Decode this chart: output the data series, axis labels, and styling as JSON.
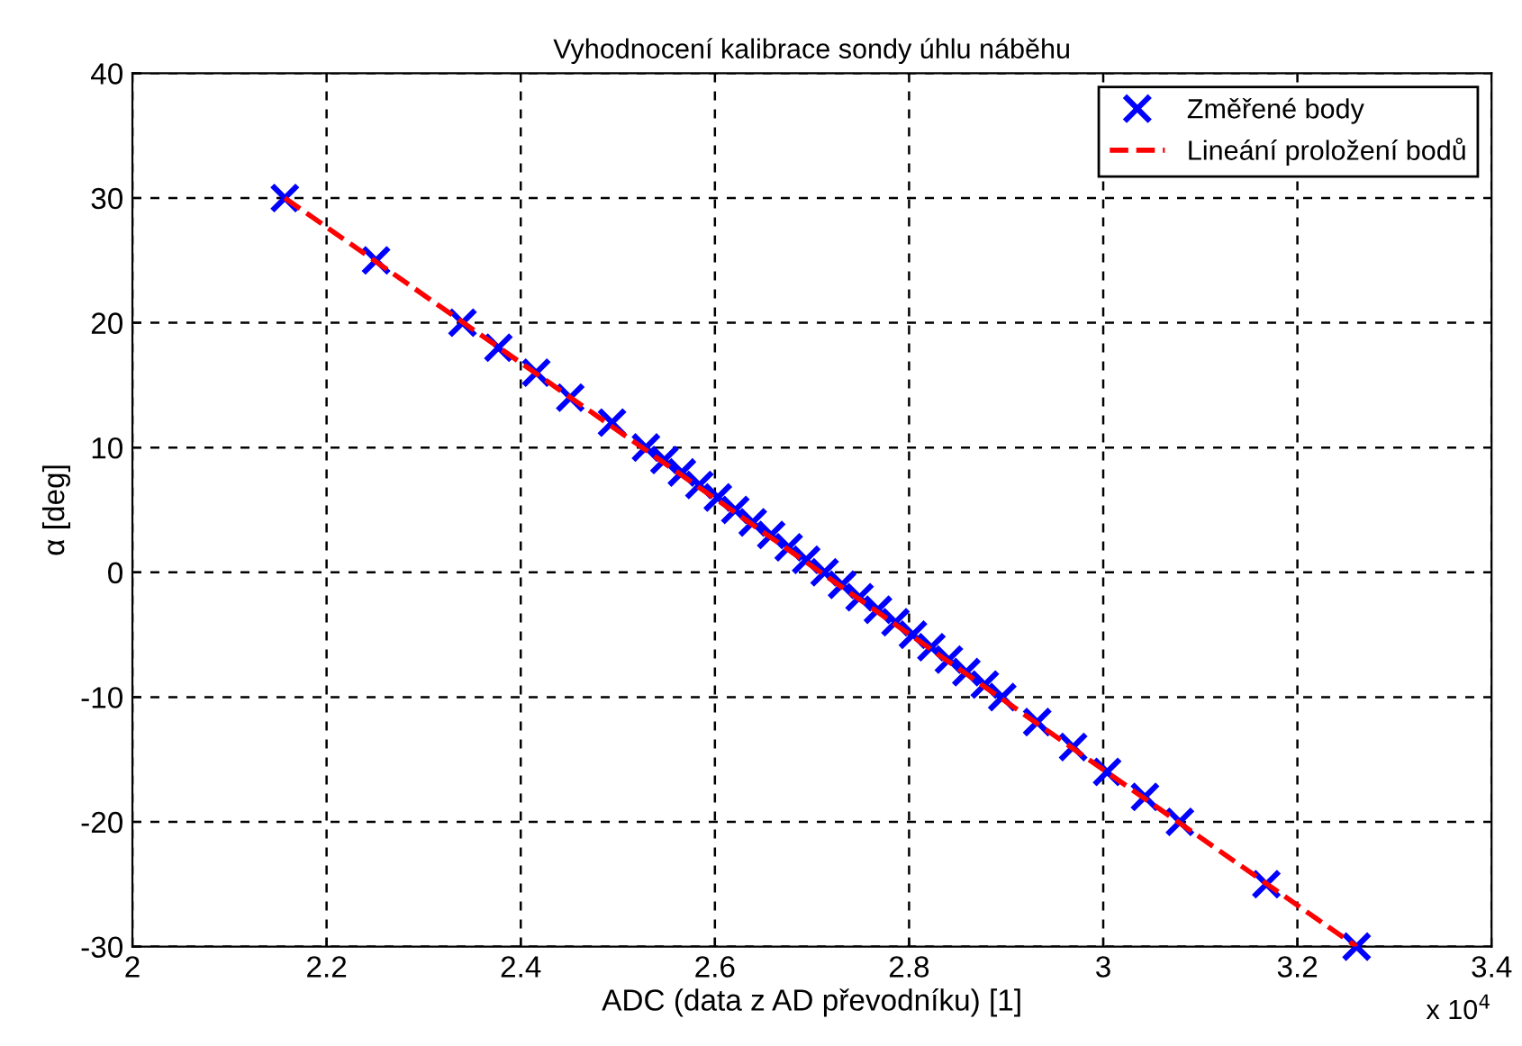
{
  "chart_data": {
    "type": "scatter",
    "title": "Vyhodnocení kalibrace sondy úhlu náběhu",
    "xlabel": "ADC (data z AD převodníku) [1]",
    "ylabel": "α [deg]",
    "annotations": [
      "x 10$^{4}$"
    ],
    "series": [
      {
        "name": "Změřené body",
        "color": "#0000ff",
        "marker": "cross",
        "x": [
          2.157,
          2.251,
          2.34,
          2.377,
          2.416,
          2.451,
          2.494,
          2.529,
          2.548,
          2.566,
          2.584,
          2.603,
          2.621,
          2.639,
          2.658,
          2.676,
          2.694,
          2.713,
          2.731,
          2.749,
          2.768,
          2.786,
          2.804,
          2.823,
          2.841,
          2.859,
          2.878,
          2.896,
          2.932,
          2.969,
          3.004,
          3.043,
          3.079,
          3.168,
          3.261
        ],
        "values": [
          30,
          25,
          20,
          18,
          16,
          14,
          12,
          10,
          9,
          8,
          7,
          6,
          5,
          4,
          3,
          2,
          1,
          0,
          -1,
          -2,
          -3,
          -4,
          -5,
          -6,
          -7,
          -8,
          -9,
          -10,
          -12,
          -14,
          -16,
          -18,
          -20,
          -25,
          -30
        ]
      },
      {
        "name": "Lineání proložení bodů",
        "type": "line",
        "color": "#ff0000",
        "line_style": "dashed",
        "marker": "none",
        "x": [
          2.157,
          3.261
        ],
        "values": [
          30,
          -30
        ]
      }
    ],
    "xlim": [
      2,
      3.4
    ],
    "xticks": [
      2,
      2.2,
      2.4,
      2.6,
      2.8,
      3,
      3.2,
      3.4
    ],
    "ylim": [
      -30,
      40
    ],
    "yticks": [
      -30,
      -20,
      -10,
      0,
      10,
      20,
      30,
      40
    ],
    "grid": true,
    "legend": "top right"
  }
}
